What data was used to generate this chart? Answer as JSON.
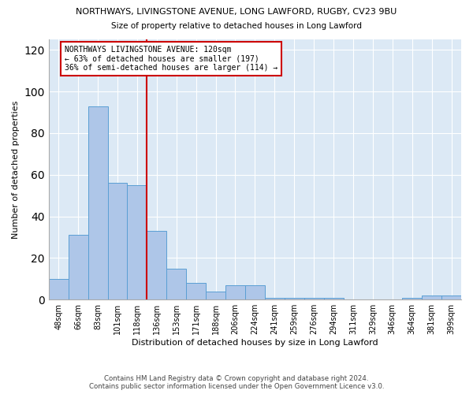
{
  "title": "NORTHWAYS, LIVINGSTONE AVENUE, LONG LAWFORD, RUGBY, CV23 9BU",
  "subtitle": "Size of property relative to detached houses in Long Lawford",
  "xlabel": "Distribution of detached houses by size in Long Lawford",
  "ylabel": "Number of detached properties",
  "categories": [
    "48sqm",
    "66sqm",
    "83sqm",
    "101sqm",
    "118sqm",
    "136sqm",
    "153sqm",
    "171sqm",
    "188sqm",
    "206sqm",
    "224sqm",
    "241sqm",
    "259sqm",
    "276sqm",
    "294sqm",
    "311sqm",
    "329sqm",
    "346sqm",
    "364sqm",
    "381sqm",
    "399sqm"
  ],
  "values": [
    10,
    31,
    93,
    56,
    55,
    33,
    15,
    8,
    4,
    7,
    7,
    1,
    1,
    1,
    1,
    0,
    0,
    0,
    1,
    2,
    2
  ],
  "bar_color": "#aec6e8",
  "bar_edge_color": "#5a9fd4",
  "vline_x": 4.5,
  "vline_color": "#cc0000",
  "annotation_text": "NORTHWAYS LIVINGSTONE AVENUE: 120sqm\n← 63% of detached houses are smaller (197)\n36% of semi-detached houses are larger (114) →",
  "annotation_box_color": "#ffffff",
  "annotation_box_edge": "#cc0000",
  "ylim": [
    0,
    125
  ],
  "yticks": [
    0,
    20,
    40,
    60,
    80,
    100,
    120
  ],
  "background_color": "#dce9f5",
  "fig_background": "#ffffff",
  "footer1": "Contains HM Land Registry data © Crown copyright and database right 2024.",
  "footer2": "Contains public sector information licensed under the Open Government Licence v3.0."
}
